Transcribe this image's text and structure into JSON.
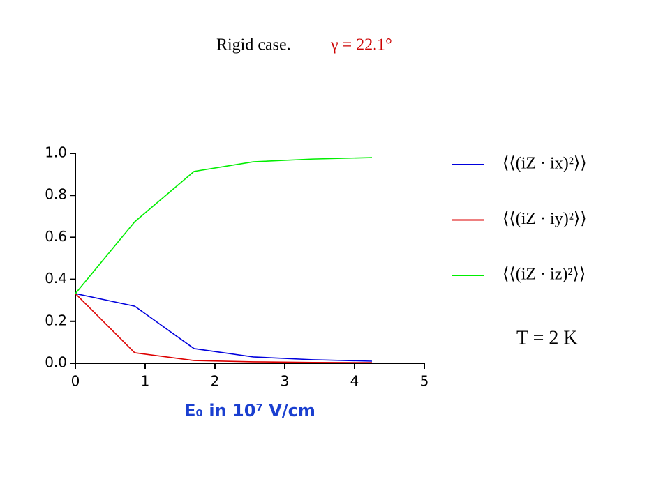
{
  "chart_data": {
    "type": "line",
    "title": "Rigid case.",
    "subtitle": "γ = 22.1°",
    "x_label": "E₀ in 10⁷ V/cm",
    "annotation": "T = 2 K",
    "x": [
      0,
      0.85,
      1.7,
      2.55,
      3.4,
      4.25
    ],
    "series": [
      {
        "name": "⟨⟨(iZ · ix)²⟩⟩",
        "color": "#0000dd",
        "values": [
          0.332,
          0.272,
          0.07,
          0.03,
          0.017,
          0.01
        ]
      },
      {
        "name": "⟨⟨(iZ · iy)²⟩⟩",
        "color": "#dd0000",
        "values": [
          0.332,
          0.05,
          0.013,
          0.007,
          0.004,
          0.003
        ]
      },
      {
        "name": "⟨⟨(iZ · iz)²⟩⟩",
        "color": "#00ee00",
        "values": [
          0.332,
          0.674,
          0.914,
          0.96,
          0.973,
          0.98
        ]
      }
    ],
    "xlim": [
      0,
      5
    ],
    "xticks": [
      0,
      1,
      2,
      3,
      4,
      5
    ],
    "ylim": [
      0,
      1
    ],
    "yticks": [
      {
        "value": 0,
        "label": "0.0"
      },
      0.2,
      0.4,
      0.6,
      0.8,
      {
        "value": 1,
        "label": "1.0"
      }
    ],
    "grid": false
  }
}
